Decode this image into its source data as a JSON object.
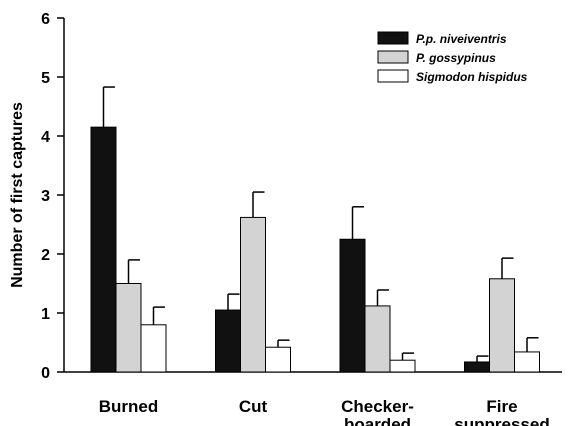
{
  "chart_data": {
    "type": "bar",
    "title": "",
    "xlabel": "",
    "ylabel": "Number of first captures",
    "ylim": [
      0,
      6
    ],
    "yticks": [
      "0",
      "1",
      "2",
      "3",
      "4",
      "5",
      "6"
    ],
    "grid": false,
    "legend_position": "top-right",
    "error_bars": true,
    "categories": [
      [
        "Burned"
      ],
      [
        "Cut"
      ],
      [
        "Checker-",
        "boarded"
      ],
      [
        "Fire",
        "suppressed"
      ]
    ],
    "series": [
      {
        "name": "P.p. niveiventris",
        "color": "#111111",
        "values": [
          4.15,
          1.05,
          2.25,
          0.17
        ],
        "errors": [
          0.68,
          0.27,
          0.55,
          0.1
        ]
      },
      {
        "name": "P. gossypinus",
        "color": "#d3d3d3",
        "values": [
          1.5,
          2.62,
          1.12,
          1.58
        ],
        "errors": [
          0.4,
          0.43,
          0.27,
          0.35
        ]
      },
      {
        "name": "Sigmodon hispidus",
        "color": "#ffffff",
        "values": [
          0.8,
          0.42,
          0.2,
          0.34
        ],
        "errors": [
          0.3,
          0.12,
          0.12,
          0.24
        ]
      }
    ]
  }
}
